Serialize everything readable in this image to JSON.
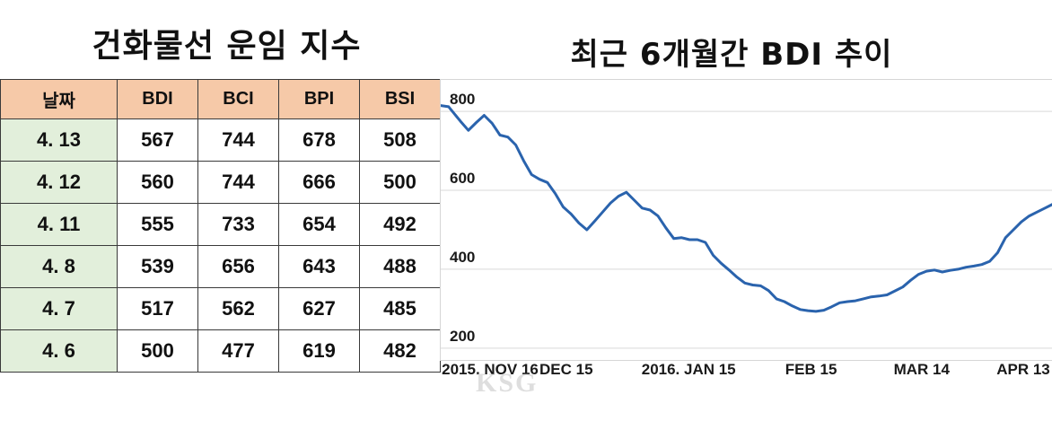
{
  "table": {
    "title": "건화물선 운임 지수",
    "headers": [
      "날짜",
      "BDI",
      "BCI",
      "BPI",
      "BSI"
    ],
    "rows": [
      [
        "4. 13",
        "567",
        "744",
        "678",
        "508"
      ],
      [
        "4. 12",
        "560",
        "744",
        "666",
        "500"
      ],
      [
        "4. 11",
        "555",
        "733",
        "654",
        "492"
      ],
      [
        "4. 8",
        "539",
        "656",
        "643",
        "488"
      ],
      [
        "4. 7",
        "517",
        "562",
        "627",
        "485"
      ],
      [
        "4. 6",
        "500",
        "477",
        "619",
        "482"
      ]
    ]
  },
  "chart_data": {
    "type": "line",
    "title": "최근 6개월간 BDI 추이",
    "xlabel": "",
    "ylabel": "",
    "ylim": [
      170,
      880
    ],
    "yticks": [
      200,
      400,
      600,
      800
    ],
    "grid": true,
    "x_tick_labels": [
      "2015. NOV 16",
      "DEC 15",
      "2016. JAN 15",
      "FEB 15",
      "MAR 14",
      "APR 13"
    ],
    "x_tick_positions": [
      0,
      29,
      60,
      91,
      119,
      149
    ],
    "x_range": [
      -3,
      152
    ],
    "line_color": "#2a63ad",
    "series": [
      {
        "x": [
          -3,
          -1,
          2,
          4,
          6,
          8,
          10,
          12,
          14,
          16,
          18,
          20,
          22,
          24,
          26,
          28,
          30,
          32,
          34,
          36,
          38,
          40,
          42,
          44,
          46,
          48,
          50,
          52,
          54,
          56,
          58,
          60,
          62,
          64,
          66,
          68,
          70,
          72,
          74,
          76,
          78,
          80,
          82,
          84,
          86,
          88,
          90,
          92,
          94,
          96,
          98,
          100,
          102,
          104,
          106,
          108,
          110,
          112,
          114,
          116,
          118,
          120,
          122,
          124,
          126,
          128,
          130,
          132,
          134,
          136,
          138,
          140,
          142,
          144,
          146,
          148,
          150,
          152
        ],
        "y": [
          815,
          812,
          775,
          752,
          772,
          790,
          770,
          740,
          735,
          715,
          675,
          640,
          628,
          620,
          592,
          558,
          540,
          517,
          500,
          522,
          545,
          568,
          585,
          595,
          575,
          555,
          550,
          535,
          505,
          478,
          480,
          475,
          475,
          468,
          435,
          415,
          398,
          380,
          365,
          360,
          358,
          346,
          325,
          318,
          307,
          298,
          295,
          293,
          296,
          305,
          315,
          318,
          320,
          325,
          330,
          332,
          335,
          345,
          355,
          372,
          387,
          395,
          398,
          393,
          397,
          400,
          405,
          408,
          412,
          420,
          442,
          480,
          500,
          520,
          535,
          545,
          555,
          565
        ]
      }
    ]
  },
  "watermark": "KSG"
}
